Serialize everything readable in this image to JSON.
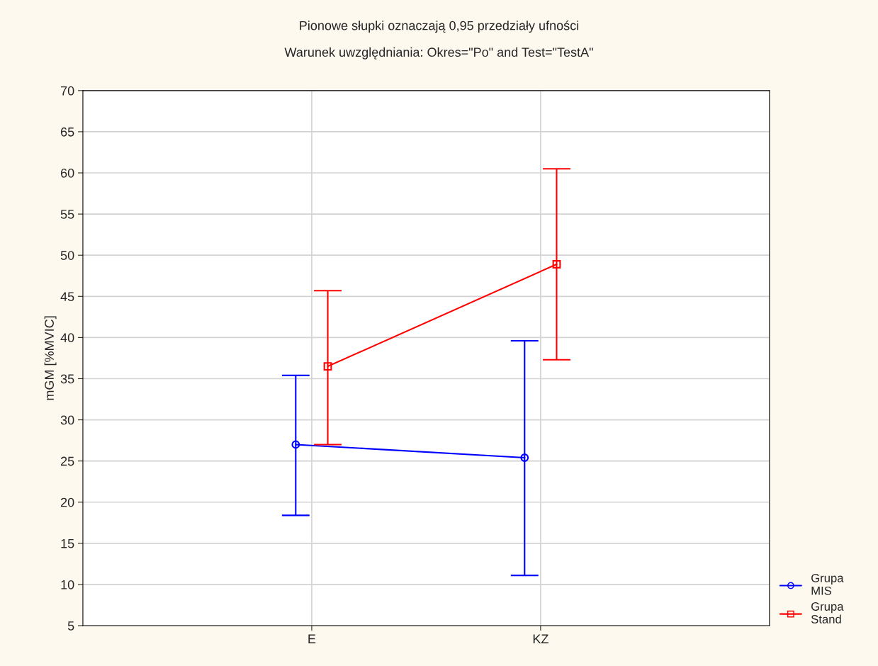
{
  "chart_data": {
    "type": "line",
    "title": "Pionowe słupki oznaczają 0,95 przedziały ufności",
    "subtitle": "Warunek uwzględniania: Okres=\"Po\" and Test=\"TestA\"",
    "ylabel": "mGM [%MVIC]",
    "categories": [
      "E",
      "KZ"
    ],
    "series": [
      {
        "name": "Grupa\nMIS",
        "color": "#0000ff",
        "marker": "circle",
        "values": [
          27.0,
          25.4
        ],
        "errors": [
          [
            18.4,
            35.4
          ],
          [
            11.1,
            39.6
          ]
        ]
      },
      {
        "name": "Grupa\nStand",
        "color": "#ff0000",
        "marker": "square",
        "values": [
          36.5,
          48.9
        ],
        "errors": [
          [
            27.0,
            45.7
          ],
          [
            37.3,
            60.5
          ]
        ]
      }
    ],
    "ylim": [
      5,
      70
    ],
    "yticks": [
      5,
      10,
      15,
      20,
      25,
      30,
      35,
      40,
      45,
      50,
      55,
      60,
      65,
      70
    ],
    "grid": true,
    "legend": "bottom right",
    "line_style": "solid"
  }
}
